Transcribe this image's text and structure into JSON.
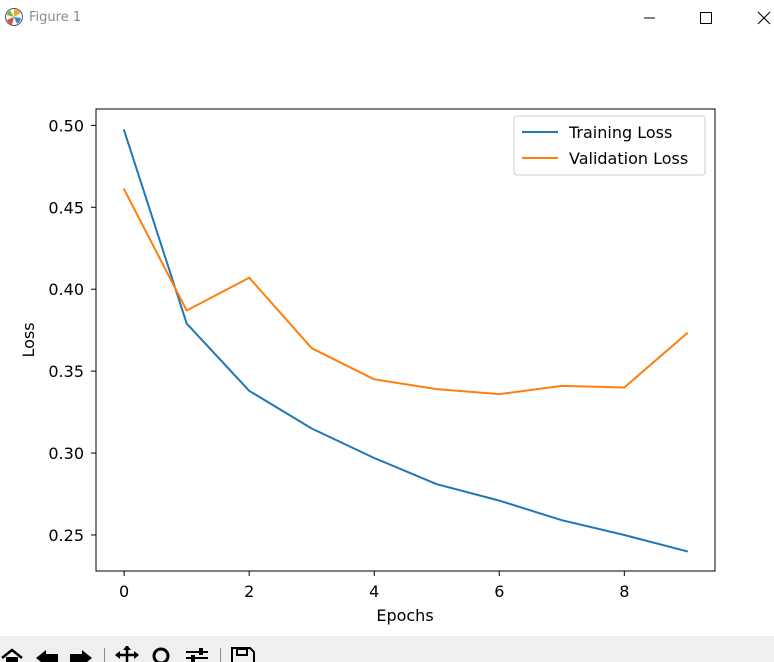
{
  "window": {
    "title": "Figure 1",
    "icon": "matplotlib-logo-icon",
    "controls": [
      "minimize-icon",
      "maximize-icon",
      "close-icon"
    ]
  },
  "toolbar": {
    "tools": [
      "home-icon",
      "back-arrow-icon",
      "forward-arrow-icon",
      "pan-icon",
      "zoom-icon",
      "configure-subplots-icon",
      "save-icon"
    ]
  },
  "chart_data": {
    "type": "line",
    "title": "",
    "xlabel": "Epochs",
    "ylabel": "Loss",
    "x": [
      0,
      1,
      2,
      3,
      4,
      5,
      6,
      7,
      8,
      9
    ],
    "xlim": [
      -0.45,
      9.45
    ],
    "ylim": [
      0.228,
      0.51
    ],
    "xticks": [
      0,
      2,
      4,
      6,
      8
    ],
    "xtick_labels": [
      "0",
      "2",
      "4",
      "6",
      "8"
    ],
    "yticks": [
      0.25,
      0.3,
      0.35,
      0.4,
      0.45,
      0.5
    ],
    "ytick_labels": [
      "0.25",
      "0.30",
      "0.35",
      "0.40",
      "0.45",
      "0.50"
    ],
    "grid": false,
    "legend_position": "top-right",
    "series": [
      {
        "name": "Training Loss",
        "color": "#1f77b4",
        "values": [
          0.497,
          0.379,
          0.338,
          0.315,
          0.297,
          0.281,
          0.271,
          0.259,
          0.25,
          0.24
        ]
      },
      {
        "name": "Validation Loss",
        "color": "#ff7f0e",
        "values": [
          0.461,
          0.387,
          0.407,
          0.364,
          0.345,
          0.339,
          0.336,
          0.341,
          0.34,
          0.373
        ]
      }
    ]
  }
}
